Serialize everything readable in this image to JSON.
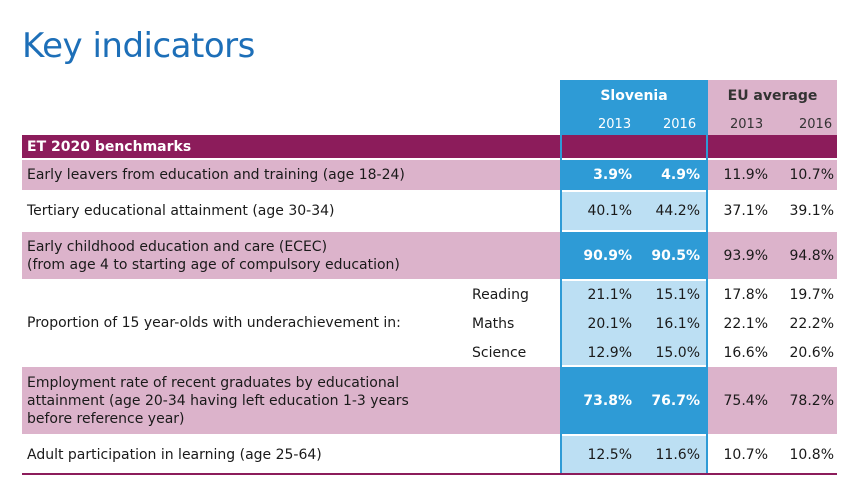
{
  "page_title": "Key indicators",
  "header": {
    "slovenia_label": "Slovenia",
    "eu_label": "EU average",
    "years": [
      "2013",
      "2016",
      "2013",
      "2016"
    ]
  },
  "section_title": "ET 2020 benchmarks",
  "rows": [
    {
      "label": "Early leavers from education and training (age 18-24)",
      "values": [
        "3.9%",
        "4.9%",
        "11.9%",
        "10.7%"
      ]
    },
    {
      "label": "Tertiary educational attainment (age 30-34)",
      "values": [
        "40.1%",
        "44.2%",
        "37.1%",
        "39.1%"
      ]
    },
    {
      "label_line1": "Early childhood education and care (ECEC)",
      "label_line2": "(from age 4 to starting age of compulsory education)",
      "values": [
        "90.9%",
        "90.5%",
        "93.9%",
        "94.8%"
      ]
    },
    {
      "label": "Proportion of 15 year-olds with underachievement in:",
      "subrows": [
        {
          "subject": "Reading",
          "values": [
            "21.1%",
            "15.1%",
            "17.8%",
            "19.7%"
          ]
        },
        {
          "subject": "Maths",
          "values": [
            "20.1%",
            "16.1%",
            "22.1%",
            "22.2%"
          ]
        },
        {
          "subject": "Science",
          "values": [
            "12.9%",
            "15.0%",
            "16.6%",
            "20.6%"
          ]
        }
      ]
    },
    {
      "label_line1": "Employment rate of recent graduates by educational",
      "label_line2": "attainment (age 20-34 having left education 1-3 years",
      "label_line3": "before reference year)",
      "values": [
        "73.8%",
        "76.7%",
        "75.4%",
        "78.2%"
      ]
    },
    {
      "label": "Adult participation in learning (age 25-64)",
      "values": [
        "12.5%",
        "11.6%",
        "10.7%",
        "10.8%"
      ]
    }
  ],
  "colors": {
    "title": "#1d6fb8",
    "slovenia_dark": "#2e9bd6",
    "slovenia_light": "#bcdff3",
    "pink": "#dcb3cb",
    "section": "#8c1c5b"
  }
}
